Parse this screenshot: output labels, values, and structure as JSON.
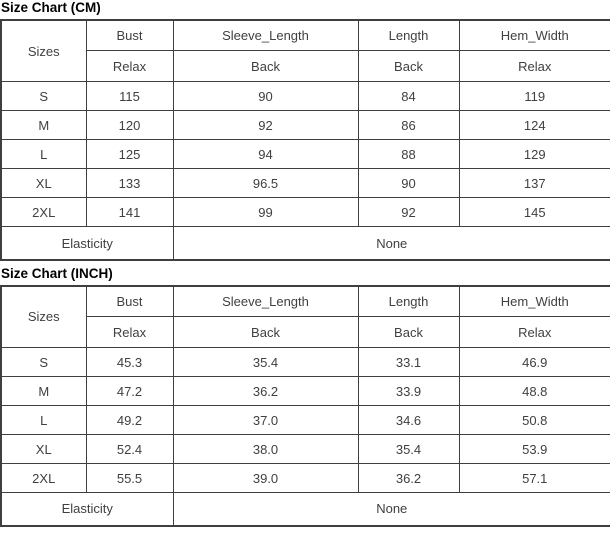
{
  "page": {
    "background_color": "#ffffff",
    "border_color": "#3f3f3f",
    "text_color": "#404040",
    "title_color": "#000000"
  },
  "tables": [
    {
      "title": "Size Chart (CM)",
      "corner_label": "Sizes",
      "columns": [
        {
          "label": "Bust",
          "sublabel": "Relax"
        },
        {
          "label": "Sleeve_Length",
          "sublabel": "Back"
        },
        {
          "label": "Length",
          "sublabel": "Back"
        },
        {
          "label": "Hem_Width",
          "sublabel": "Relax"
        }
      ],
      "rows": [
        {
          "size": "S",
          "values": [
            "115",
            "90",
            "84",
            "119"
          ]
        },
        {
          "size": "M",
          "values": [
            "120",
            "92",
            "86",
            "124"
          ]
        },
        {
          "size": "L",
          "values": [
            "125",
            "94",
            "88",
            "129"
          ]
        },
        {
          "size": "XL",
          "values": [
            "133",
            "96.5",
            "90",
            "137"
          ]
        },
        {
          "size": "2XL",
          "values": [
            "141",
            "99",
            "92",
            "145"
          ]
        }
      ],
      "footer": {
        "label": "Elasticity",
        "value": "None"
      }
    },
    {
      "title": "Size Chart (INCH)",
      "corner_label": "Sizes",
      "columns": [
        {
          "label": "Bust",
          "sublabel": "Relax"
        },
        {
          "label": "Sleeve_Length",
          "sublabel": "Back"
        },
        {
          "label": "Length",
          "sublabel": "Back"
        },
        {
          "label": "Hem_Width",
          "sublabel": "Relax"
        }
      ],
      "rows": [
        {
          "size": "S",
          "values": [
            "45.3",
            "35.4",
            "33.1",
            "46.9"
          ]
        },
        {
          "size": "M",
          "values": [
            "47.2",
            "36.2",
            "33.9",
            "48.8"
          ]
        },
        {
          "size": "L",
          "values": [
            "49.2",
            "37.0",
            "34.6",
            "50.8"
          ]
        },
        {
          "size": "XL",
          "values": [
            "52.4",
            "38.0",
            "35.4",
            "53.9"
          ]
        },
        {
          "size": "2XL",
          "values": [
            "55.5",
            "39.0",
            "36.2",
            "57.1"
          ]
        }
      ],
      "footer": {
        "label": "Elasticity",
        "value": "None"
      }
    }
  ],
  "chart_data": [
    {
      "type": "table",
      "title": "Size Chart (CM)",
      "unit": "CM",
      "columns": [
        "Sizes",
        "Bust (Relax)",
        "Sleeve_Length (Back)",
        "Length (Back)",
        "Hem_Width (Relax)"
      ],
      "rows": [
        [
          "S",
          115,
          90,
          84,
          119
        ],
        [
          "M",
          120,
          92,
          86,
          124
        ],
        [
          "L",
          125,
          94,
          88,
          129
        ],
        [
          "XL",
          133,
          96.5,
          90,
          137
        ],
        [
          "2XL",
          141,
          99,
          92,
          145
        ]
      ],
      "footer": [
        "Elasticity",
        "None"
      ]
    },
    {
      "type": "table",
      "title": "Size Chart (INCH)",
      "unit": "INCH",
      "columns": [
        "Sizes",
        "Bust (Relax)",
        "Sleeve_Length (Back)",
        "Length (Back)",
        "Hem_Width (Relax)"
      ],
      "rows": [
        [
          "S",
          45.3,
          35.4,
          33.1,
          46.9
        ],
        [
          "M",
          47.2,
          36.2,
          33.9,
          48.8
        ],
        [
          "L",
          49.2,
          37.0,
          34.6,
          50.8
        ],
        [
          "XL",
          52.4,
          38.0,
          35.4,
          53.9
        ],
        [
          "2XL",
          55.5,
          39.0,
          36.2,
          57.1
        ]
      ],
      "footer": [
        "Elasticity",
        "None"
      ]
    }
  ]
}
